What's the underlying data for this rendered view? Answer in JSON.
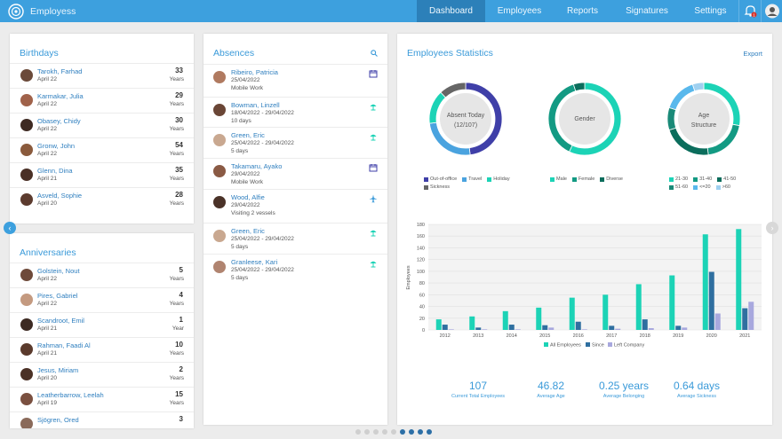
{
  "app": {
    "title": "Employess"
  },
  "nav": [
    {
      "label": "Dashboard",
      "active": true,
      "w": 77
    },
    {
      "label": "Employees",
      "active": false,
      "w": 77
    },
    {
      "label": "Reports",
      "active": false,
      "w": 65
    },
    {
      "label": "Signatures",
      "active": false,
      "w": 80
    },
    {
      "label": "Settings",
      "active": false,
      "w": 63
    }
  ],
  "notifications": {
    "count": "1"
  },
  "birthdays": {
    "title": "Birthdays",
    "items": [
      {
        "name": "Tarokh, Farhad",
        "date": "April 22",
        "value": "33",
        "unit": "Years",
        "color": "#6b4a3a"
      },
      {
        "name": "Karmakar, Julia",
        "date": "April 22",
        "value": "29",
        "unit": "Years",
        "color": "#a0624a"
      },
      {
        "name": "Obasey, Chidy",
        "date": "April 22",
        "value": "30",
        "unit": "Years",
        "color": "#3e2a22"
      },
      {
        "name": "Gronw, John",
        "date": "April 22",
        "value": "54",
        "unit": "Years",
        "color": "#8a5a3c"
      },
      {
        "name": "Glenn, Dina",
        "date": "April 21",
        "value": "35",
        "unit": "Years",
        "color": "#4a3026"
      },
      {
        "name": "Asveld, Sophie",
        "date": "April 20",
        "value": "28",
        "unit": "Years",
        "color": "#5c3b2e"
      }
    ]
  },
  "anniversaries": {
    "title": "Anniversaries",
    "items": [
      {
        "name": "Golstein, Nout",
        "date": "April 22",
        "value": "5",
        "unit": "Years",
        "color": "#6e4a3a"
      },
      {
        "name": "Pires, Gabriel",
        "date": "April 22",
        "value": "4",
        "unit": "Years",
        "color": "#c49a80"
      },
      {
        "name": "Scandroot, Emil",
        "date": "April 21",
        "value": "1",
        "unit": "Year",
        "color": "#3d2a22"
      },
      {
        "name": "Rahman, Faadi Al",
        "date": "April 21",
        "value": "10",
        "unit": "Years",
        "color": "#5a3a2c"
      },
      {
        "name": "Jesus, Miriam",
        "date": "April 20",
        "value": "2",
        "unit": "Years",
        "color": "#4b3126"
      },
      {
        "name": "Leatherbarrow, Leelah",
        "date": "April 19",
        "value": "15",
        "unit": "Years",
        "color": "#7a5040"
      },
      {
        "name": "Sjögren, Ored",
        "date": "",
        "value": "3",
        "unit": "",
        "color": "#8a6a5a"
      }
    ]
  },
  "absences": {
    "title": "Absences",
    "items": [
      {
        "name": "Ribeiro, Patricia",
        "line1": "25/04/2022",
        "line2": "Mobile Work",
        "icon": "calendar-icon",
        "color": "#b07a60"
      },
      {
        "name": "Bowman, Linzell",
        "line1": "18/04/2022 - 29/04/2022",
        "line2": "10 days",
        "icon": "umbrella-icon",
        "color": "#6a4636"
      },
      {
        "name": "Green, Eric",
        "line1": "25/04/2022 - 29/04/2022",
        "line2": "5 days",
        "icon": "umbrella-icon",
        "color": "#c9a890"
      },
      {
        "name": "Takamaru, Ayako",
        "line1": "29/04/2022",
        "line2": "Mobile Work",
        "icon": "calendar-icon",
        "color": "#8a5a44"
      },
      {
        "name": "Wood, Alfie",
        "line1": "29/04/2022",
        "line2": "Visiting 2 vessels",
        "icon": "airplane-icon",
        "color": "#4a3228"
      },
      {
        "name": "Green, Eric",
        "line1": "25/04/2022 - 29/04/2022",
        "line2": "5 days",
        "icon": "umbrella-icon",
        "color": "#c9a890"
      },
      {
        "name": "Granleese, Kari",
        "line1": "25/04/2022 - 29/04/2022",
        "line2": "5 days",
        "icon": "umbrella-icon",
        "color": "#b08470"
      }
    ]
  },
  "stats": {
    "title": "Employees Statistics",
    "export_label": "Export",
    "colors": {
      "navy": "#3f3fa8",
      "blue": "#4aa3df",
      "teal": "#1cd3b6",
      "gray": "#666666",
      "darkteal": "#0b6d5c",
      "green": "#139a83",
      "sky": "#59b8ec",
      "light": "#9fd0f0"
    },
    "donuts": [
      {
        "label": "Absent Today (12/107)",
        "line1": "Absent Today",
        "line2": "(12/107)",
        "slices": [
          {
            "name": "Out-of-office",
            "value": 48,
            "color": "#3f3fa8"
          },
          {
            "name": "Travel",
            "value": 25,
            "color": "#4aa3df"
          },
          {
            "name": "Holiday",
            "value": 15,
            "color": "#1cd3b6"
          },
          {
            "name": "Sickness",
            "value": 12,
            "color": "#666666"
          }
        ]
      },
      {
        "label": "Gender",
        "line1": "Gender",
        "line2": "",
        "slices": [
          {
            "name": "Male",
            "value": 57,
            "color": "#1cd3b6"
          },
          {
            "name": "Female",
            "value": 38,
            "color": "#139a83"
          },
          {
            "name": "Diverse",
            "value": 5,
            "color": "#0b6d5c"
          }
        ]
      },
      {
        "label": "Age Structure",
        "line1": "Age",
        "line2": "Structure",
        "slices": [
          {
            "name": "21-30",
            "value": 28,
            "color": "#1cd3b6"
          },
          {
            "name": "31-40",
            "value": 20,
            "color": "#139a83"
          },
          {
            "name": "41-50",
            "value": 22,
            "color": "#0b6d5c"
          },
          {
            "name": "51-60",
            "value": 10,
            "color": "#1a8a78"
          },
          {
            "name": "<=20",
            "value": 15,
            "color": "#59b8ec"
          },
          {
            "name": ">60",
            "value": 5,
            "color": "#9fd0f0"
          }
        ]
      }
    ],
    "legends": [
      [
        "Out-of-office",
        "Travel",
        "Holiday",
        "Sickness"
      ],
      [
        "Male",
        "Female",
        "Diverse"
      ],
      [
        "21-30",
        "31-40",
        "41-50",
        "51-60",
        "<=20",
        ">60"
      ]
    ],
    "summary": [
      {
        "value": "107",
        "label": "Current Total Employees"
      },
      {
        "value": "46.82",
        "label": "Average Age"
      },
      {
        "value": "0.25 years",
        "label": "Average Belonging"
      },
      {
        "value": "0.64 days",
        "label": "Average Sickness"
      }
    ]
  },
  "chart_data": {
    "type": "bar",
    "title": "",
    "xlabel": "",
    "ylabel": "Employees",
    "ylim": [
      0,
      180
    ],
    "yticks": [
      0,
      20,
      40,
      60,
      80,
      100,
      120,
      140,
      160,
      180
    ],
    "categories": [
      "2012",
      "2013",
      "2014",
      "2015",
      "2016",
      "2017",
      "2018",
      "2019",
      "2020",
      "2021"
    ],
    "series": [
      {
        "name": "All Employees",
        "color": "#1cd3b6",
        "values": [
          18,
          23,
          32,
          38,
          55,
          60,
          78,
          93,
          163,
          172
        ]
      },
      {
        "name": "Since",
        "color": "#2f6fa0",
        "values": [
          9,
          4,
          9,
          8,
          14,
          7,
          18,
          7,
          99,
          37
        ]
      },
      {
        "name": "Left Company",
        "color": "#a8a8de",
        "values": [
          1,
          1,
          1,
          4,
          1,
          2,
          3,
          4,
          28,
          48
        ]
      }
    ],
    "grid": true,
    "legend": "bottom"
  },
  "pagination": {
    "pages": 9,
    "active": [
      5,
      6,
      7,
      8
    ]
  }
}
